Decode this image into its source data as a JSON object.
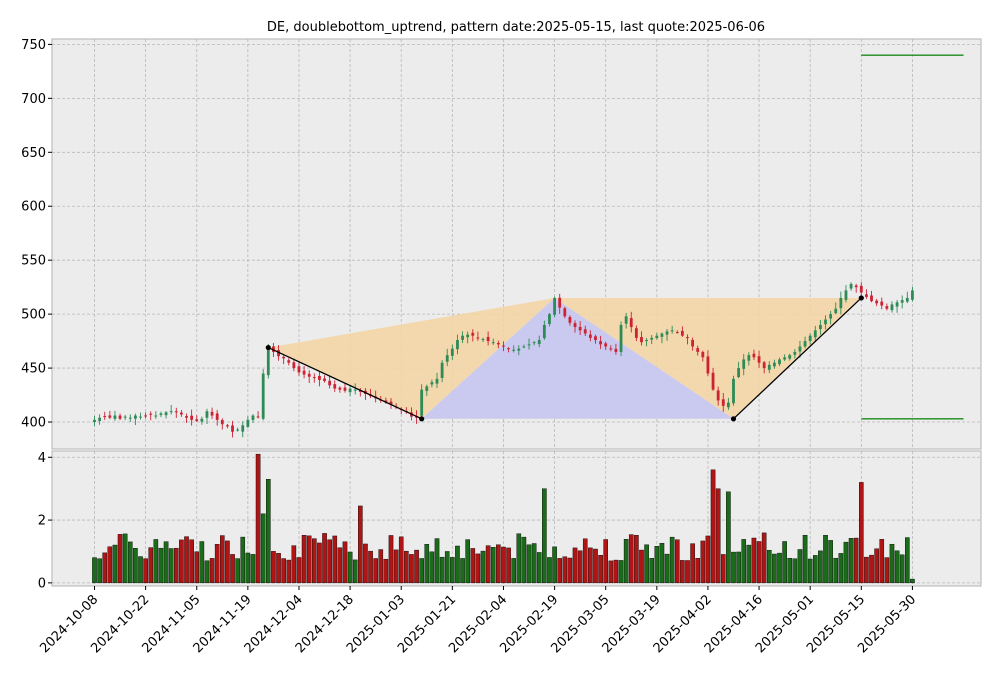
{
  "chart_data": {
    "type": "candlestick",
    "title": "DE, doublebottom_uptrend, pattern date:2025-05-15, last quote:2025-06-06",
    "price_axis": {
      "ylim": [
        375,
        755
      ],
      "ticks": [
        400,
        450,
        500,
        550,
        600,
        650,
        700,
        750
      ]
    },
    "volume_axis": {
      "ylim": [
        -0.1,
        4.2
      ],
      "ticks": [
        0,
        2,
        4
      ]
    },
    "x_tick_labels": [
      "2024-10-08",
      "2024-10-22",
      "2024-11-05",
      "2024-11-19",
      "2024-12-04",
      "2024-12-18",
      "2025-01-03",
      "2025-01-21",
      "2025-02-04",
      "2025-02-19",
      "2025-03-05",
      "2025-03-19",
      "2025-04-02",
      "2025-04-16",
      "2025-05-01",
      "2025-05-15",
      "2025-05-30"
    ],
    "x_tick_index": [
      0,
      10,
      20,
      30,
      40,
      50,
      60,
      70,
      80,
      90,
      100,
      110,
      120,
      130,
      140,
      150,
      160
    ],
    "grid": true,
    "colors": {
      "up": "#2e8b57",
      "down": "#cc2233",
      "vol_up": "#1a6b1a",
      "vol_down": "#b01515",
      "background": "#ececec",
      "triangle_outer": "#f5d5a3",
      "triangle_inner": "#c8c8f0",
      "target_line": "#1a8a1a"
    },
    "pattern": {
      "points": [
        {
          "index": 34,
          "price": 469
        },
        {
          "index": 64,
          "price": 403
        },
        {
          "index": 90,
          "price": 515
        },
        {
          "index": 125,
          "price": 403
        },
        {
          "index": 150,
          "price": 515
        }
      ],
      "outer_triangles": [
        [
          [
            34,
            469
          ],
          [
            64,
            403
          ],
          [
            90,
            515
          ]
        ],
        [
          [
            90,
            515
          ],
          [
            125,
            403
          ],
          [
            150,
            515
          ]
        ]
      ],
      "inner_triangle": [
        [
          64,
          403
        ],
        [
          90,
          515
        ],
        [
          125,
          403
        ]
      ],
      "targets": [
        {
          "price": 740,
          "from_index": 150,
          "to_index": 170
        },
        {
          "price": 403,
          "from_index": 150,
          "to_index": 170
        }
      ]
    },
    "price_close": [
      402,
      404,
      405,
      404,
      406,
      403,
      405,
      404,
      406,
      405,
      406,
      407,
      406,
      408,
      409,
      410,
      409,
      407,
      404,
      402,
      401,
      403,
      410,
      406,
      402,
      398,
      396,
      391,
      393,
      397,
      402,
      406,
      405,
      445,
      469,
      465,
      461,
      459,
      455,
      450,
      446,
      444,
      442,
      441,
      439,
      438,
      434,
      431,
      430,
      429,
      431,
      430,
      428,
      426,
      424,
      422,
      420,
      418,
      416,
      414,
      412,
      410,
      405,
      404,
      430,
      433,
      437,
      440,
      455,
      462,
      468,
      476,
      480,
      481,
      480,
      478,
      477,
      475,
      474,
      472,
      470,
      468,
      467,
      468,
      470,
      472,
      474,
      476,
      490,
      500,
      515,
      506,
      498,
      492,
      488,
      485,
      482,
      478,
      476,
      472,
      470,
      468,
      465,
      490,
      498,
      488,
      478,
      474,
      476,
      478,
      480,
      482,
      484,
      485,
      483,
      480,
      478,
      470,
      465,
      460,
      445,
      430,
      420,
      415,
      418,
      440,
      450,
      458,
      462,
      460,
      455,
      450,
      453,
      455,
      458,
      460,
      462,
      465,
      470,
      475,
      480,
      485,
      490,
      495,
      500,
      505,
      515,
      522,
      528,
      525,
      520,
      516,
      512,
      510,
      508,
      505,
      509,
      511,
      513,
      515,
      522
    ]
  }
}
